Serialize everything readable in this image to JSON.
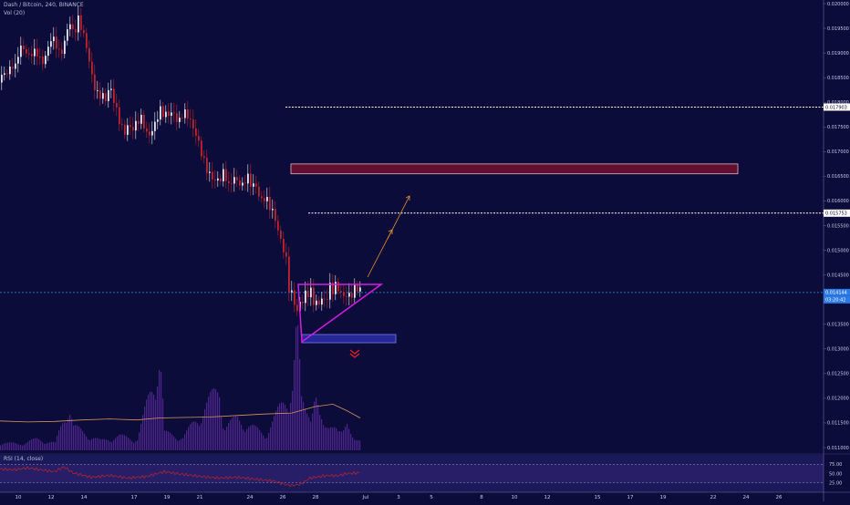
{
  "header": {
    "symbol_line": "Dash / Bitcoin, 240, BINANCE",
    "vol_label": "Vol (20)",
    "rsi_label": "RSI (14, close)"
  },
  "price_axis": {
    "ticks": [
      "0.020000",
      "0.019500",
      "0.019000",
      "0.018500",
      "0.018000",
      "0.017500",
      "0.017000",
      "0.016500",
      "0.016000",
      "0.015500",
      "0.015000",
      "0.014500",
      "0.014000",
      "0.013500",
      "0.013000",
      "0.012500",
      "0.012000",
      "0.011500",
      "0.011000"
    ],
    "tag_level1": "0.017903",
    "tag_level2": "0.015753",
    "tag_current": "0.014144",
    "tag_countdown": "03:20:42"
  },
  "rsi_axis": {
    "ticks": [
      "75.00",
      "50.00",
      "25.00"
    ]
  },
  "time_axis": {
    "ticks": [
      "10",
      "12",
      "14",
      "17",
      "19",
      "21",
      "24",
      "26",
      "28",
      "Jul",
      "3",
      "5",
      "8",
      "10",
      "12",
      "15",
      "17",
      "19",
      "22",
      "24",
      "26"
    ]
  },
  "colors": {
    "background": "#0b0c3a",
    "up": "#e8e8f0",
    "down": "#c0242c",
    "volume": "#5a2a9a",
    "vol_ma": "#d8945a",
    "rsi_line": "#c0242c",
    "triangle": "#d21ee0",
    "resistance_zone": "#6a1030",
    "support_zone": "#2a2aa0",
    "arrow": "#e8962a",
    "current_line": "#3a8ae8"
  },
  "chart_data": {
    "type": "candlestick",
    "title": "Dash / Bitcoin, 240, BINANCE",
    "xlabel": "",
    "ylabel": "",
    "ylim": [
      0.011,
      0.02
    ],
    "grid": false,
    "current_price": 0.014144,
    "horizontal_levels": [
      0.017903,
      0.015753
    ],
    "resistance_zone": [
      0.01655,
      0.01675
    ],
    "support_zone": [
      0.0131,
      0.0132
    ],
    "close_path": [
      [
        0,
        0.0184
      ],
      [
        5,
        0.0186
      ],
      [
        9,
        0.0187
      ],
      [
        12,
        0.0189
      ],
      [
        16,
        0.0188
      ],
      [
        20,
        0.0191
      ],
      [
        25,
        0.019
      ],
      [
        30,
        0.0188
      ],
      [
        35,
        0.019
      ],
      [
        40,
        0.0191
      ],
      [
        45,
        0.0189
      ],
      [
        50,
        0.019
      ],
      [
        55,
        0.0192
      ],
      [
        60,
        0.0191
      ],
      [
        65,
        0.0189
      ],
      [
        70,
        0.0193
      ],
      [
        75,
        0.0198
      ],
      [
        80,
        0.0194
      ],
      [
        85,
        0.0196
      ],
      [
        90,
        0.0193
      ],
      [
        95,
        0.019
      ],
      [
        100,
        0.0186
      ],
      [
        105,
        0.0183
      ],
      [
        110,
        0.0182
      ],
      [
        115,
        0.018
      ],
      [
        120,
        0.0182
      ],
      [
        125,
        0.0179
      ],
      [
        130,
        0.0177
      ],
      [
        135,
        0.0175
      ],
      [
        140,
        0.0176
      ],
      [
        145,
        0.0174
      ],
      [
        150,
        0.0175
      ],
      [
        155,
        0.0176
      ],
      [
        160,
        0.0174
      ],
      [
        165,
        0.0175
      ],
      [
        170,
        0.0177
      ],
      [
        175,
        0.0178
      ],
      [
        180,
        0.0176
      ],
      [
        185,
        0.0177
      ],
      [
        190,
        0.0178
      ],
      [
        195,
        0.0177
      ],
      [
        200,
        0.0179
      ],
      [
        205,
        0.0177
      ],
      [
        210,
        0.0174
      ],
      [
        215,
        0.0172
      ],
      [
        220,
        0.017
      ],
      [
        225,
        0.0168
      ],
      [
        230,
        0.0166
      ],
      [
        235,
        0.0164
      ],
      [
        240,
        0.0163
      ],
      [
        245,
        0.0165
      ],
      [
        250,
        0.0163
      ],
      [
        255,
        0.0166
      ],
      [
        260,
        0.0165
      ],
      [
        265,
        0.0163
      ],
      [
        270,
        0.0164
      ],
      [
        275,
        0.0162
      ],
      [
        280,
        0.0163
      ],
      [
        285,
        0.0161
      ],
      [
        290,
        0.0162
      ],
      [
        295,
        0.0159
      ],
      [
        300,
        0.0156
      ],
      [
        305,
        0.0152
      ],
      [
        310,
        0.015
      ],
      [
        314,
        0.0148
      ],
      [
        317,
        0.0141
      ],
      [
        320,
        0.0143
      ],
      [
        323,
        0.0139
      ],
      [
        326,
        0.0137
      ],
      [
        329,
        0.014
      ],
      [
        332,
        0.0138
      ],
      [
        335,
        0.0141
      ],
      [
        338,
        0.014
      ],
      [
        341,
        0.0142
      ],
      [
        344,
        0.0139
      ],
      [
        347,
        0.0141
      ],
      [
        350,
        0.014
      ],
      [
        353,
        0.0142
      ],
      [
        356,
        0.0139
      ],
      [
        359,
        0.0141
      ],
      [
        362,
        0.0142
      ],
      [
        365,
        0.014
      ],
      [
        368,
        0.0143
      ],
      [
        371,
        0.0141
      ],
      [
        374,
        0.0142
      ],
      [
        377,
        0.0141
      ],
      [
        380,
        0.0143
      ],
      [
        383,
        0.0141
      ],
      [
        386,
        0.0142
      ],
      [
        389,
        0.0142
      ],
      [
        392,
        0.0141
      ],
      [
        395,
        0.0141
      ]
    ],
    "volume_profile": [
      [
        0,
        10
      ],
      [
        20,
        8
      ],
      [
        40,
        14
      ],
      [
        60,
        9
      ],
      [
        75,
        60
      ],
      [
        80,
        30
      ],
      [
        95,
        20
      ],
      [
        110,
        12
      ],
      [
        130,
        18
      ],
      [
        150,
        14
      ],
      [
        175,
        120
      ],
      [
        180,
        22
      ],
      [
        200,
        16
      ],
      [
        240,
        80
      ],
      [
        245,
        30
      ],
      [
        260,
        40
      ],
      [
        290,
        20
      ],
      [
        310,
        60
      ],
      [
        315,
        70
      ],
      [
        320,
        85
      ],
      [
        325,
        160
      ],
      [
        330,
        60
      ],
      [
        335,
        50
      ],
      [
        340,
        55
      ],
      [
        345,
        75
      ],
      [
        350,
        40
      ],
      [
        355,
        25
      ],
      [
        360,
        30
      ],
      [
        365,
        45
      ],
      [
        370,
        25
      ],
      [
        375,
        20
      ],
      [
        380,
        30
      ],
      [
        385,
        20
      ],
      [
        390,
        18
      ],
      [
        395,
        12
      ]
    ],
    "vol_ma": [
      [
        0,
        0.01154
      ],
      [
        30,
        0.01152
      ],
      [
        60,
        0.01153
      ],
      [
        90,
        0.01156
      ],
      [
        120,
        0.01158
      ],
      [
        150,
        0.01156
      ],
      [
        175,
        0.0116
      ],
      [
        200,
        0.01161
      ],
      [
        230,
        0.01162
      ],
      [
        260,
        0.01165
      ],
      [
        290,
        0.01168
      ],
      [
        320,
        0.0117
      ],
      [
        345,
        0.01183
      ],
      [
        365,
        0.01188
      ],
      [
        380,
        0.01175
      ],
      [
        395,
        0.0116
      ]
    ],
    "rsi": [
      [
        0,
        62
      ],
      [
        15,
        60
      ],
      [
        30,
        65
      ],
      [
        45,
        60
      ],
      [
        60,
        55
      ],
      [
        70,
        68
      ],
      [
        80,
        52
      ],
      [
        100,
        40
      ],
      [
        120,
        45
      ],
      [
        140,
        38
      ],
      [
        160,
        42
      ],
      [
        180,
        55
      ],
      [
        200,
        48
      ],
      [
        220,
        42
      ],
      [
        240,
        38
      ],
      [
        260,
        40
      ],
      [
        280,
        35
      ],
      [
        300,
        30
      ],
      [
        314,
        20
      ],
      [
        320,
        18
      ],
      [
        330,
        22
      ],
      [
        340,
        38
      ],
      [
        350,
        42
      ],
      [
        360,
        45
      ],
      [
        370,
        44
      ],
      [
        380,
        50
      ],
      [
        395,
        52
      ]
    ]
  }
}
